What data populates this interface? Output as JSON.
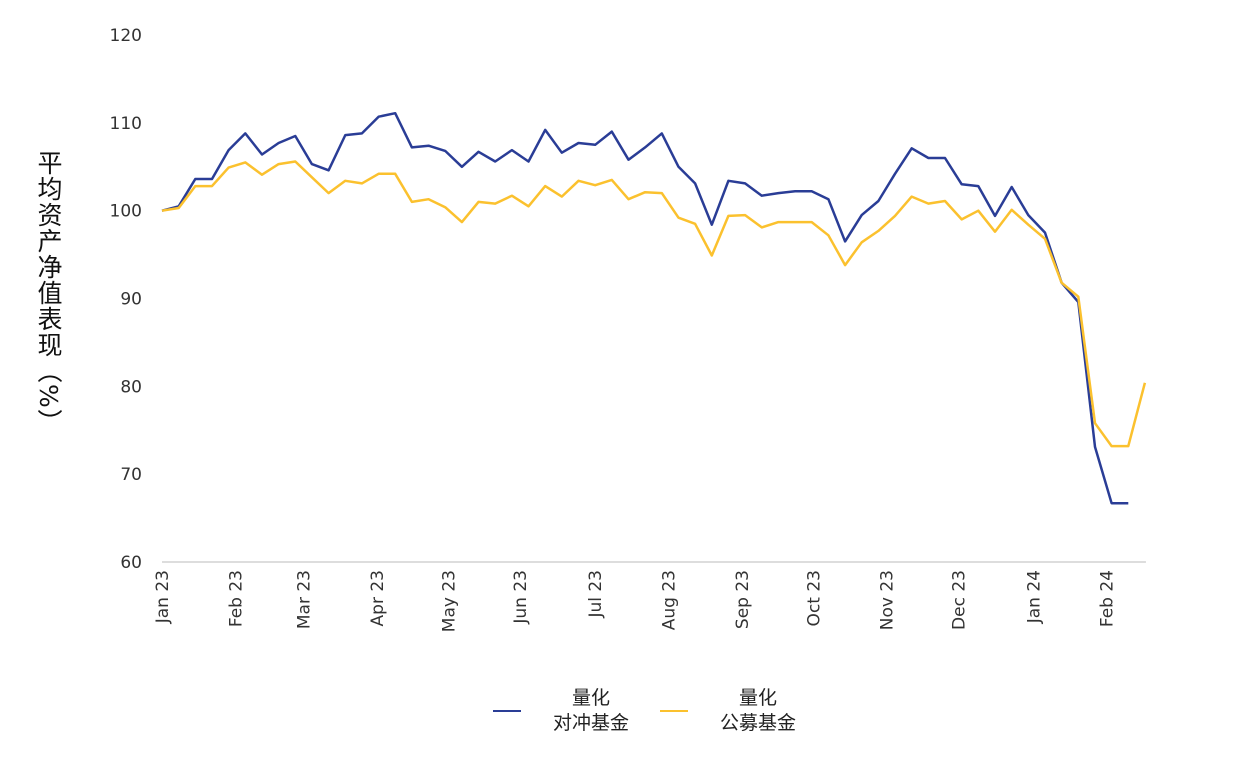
{
  "chart_data": {
    "type": "line",
    "title": "",
    "xlabel": "",
    "ylabel": "平均资产净值表现（%）",
    "ylim": [
      60,
      120
    ],
    "yticks": [
      60,
      70,
      80,
      90,
      100,
      110,
      120
    ],
    "grid": false,
    "legend_position": "bottom",
    "x_tick_labels": [
      "Jan 23",
      "Feb 23",
      "Mar 23",
      "Apr 23",
      "May 23",
      "Jun 23",
      "Jul 23",
      "Aug 23",
      "Sep 23",
      "Oct 23",
      "Nov 23",
      "Dec 23",
      "Jan 24",
      "Feb 24"
    ],
    "x_tick_positions": [
      0,
      4.4,
      8.5,
      12.9,
      17.2,
      21.5,
      26,
      30.4,
      34.8,
      39.1,
      43.5,
      47.8,
      52.3,
      56.7
    ],
    "x_unit": "week index",
    "series": [
      {
        "name": "量化\n对冲基金",
        "name_lines": [
          "量化",
          "对冲基金"
        ],
        "color": "#2a3d96",
        "values": [
          100.0,
          100.5,
          103.6,
          103.6,
          106.9,
          108.8,
          106.4,
          107.7,
          108.5,
          105.3,
          104.6,
          108.6,
          108.8,
          110.7,
          111.1,
          107.2,
          107.4,
          106.8,
          105.0,
          106.7,
          105.6,
          106.9,
          105.6,
          109.2,
          106.6,
          107.7,
          107.5,
          109.0,
          105.8,
          107.2,
          108.8,
          105.0,
          103.1,
          98.4,
          103.4,
          103.1,
          101.7,
          102.0,
          102.2,
          102.2,
          101.3,
          96.5,
          99.5,
          101.1,
          104.2,
          107.1,
          106.0,
          106.0,
          103.0,
          102.8,
          99.4,
          102.7,
          99.5,
          97.5,
          91.8,
          89.6,
          73.1,
          66.7,
          66.7
        ]
      },
      {
        "name": "量化\n公募基金",
        "name_lines": [
          "量化",
          "公募基金"
        ],
        "color": "#fbc12e",
        "values": [
          100.0,
          100.3,
          102.8,
          102.8,
          104.9,
          105.5,
          104.1,
          105.3,
          105.6,
          103.8,
          102.0,
          103.4,
          103.1,
          104.2,
          104.2,
          101.0,
          101.3,
          100.4,
          98.7,
          101.0,
          100.8,
          101.7,
          100.5,
          102.8,
          101.6,
          103.4,
          102.9,
          103.5,
          101.3,
          102.1,
          102.0,
          99.2,
          98.5,
          94.9,
          99.4,
          99.5,
          98.1,
          98.7,
          98.7,
          98.7,
          97.2,
          93.8,
          96.4,
          97.7,
          99.4,
          101.6,
          100.8,
          101.1,
          99.0,
          100.0,
          97.6,
          100.1,
          98.4,
          96.8,
          91.8,
          90.2,
          75.8,
          73.2,
          73.2,
          80.4
        ]
      }
    ]
  }
}
